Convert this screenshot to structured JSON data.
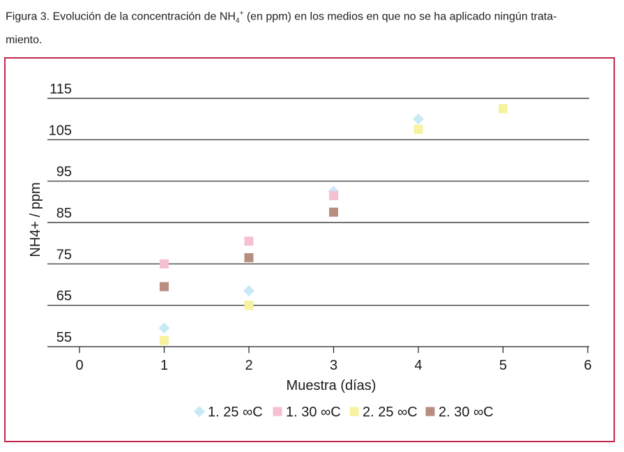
{
  "caption": {
    "prefix": "Figura 3. Evolución de la concentración de NH",
    "sub": "4",
    "sup": "+",
    "suffix": " (en ppm) en los medios en que no se ha aplicado ningún trata-",
    "line2": "miento."
  },
  "chart_data": {
    "type": "scatter",
    "title": "",
    "xlabel": "Muestra (días)",
    "ylabel": "NH4+ / ppm",
    "xlim": [
      0,
      6
    ],
    "ylim": [
      55,
      115
    ],
    "x_ticks": [
      "0",
      "1",
      "2",
      "3",
      "4",
      "5",
      "6"
    ],
    "y_ticks": [
      "55",
      "65",
      "75",
      "85",
      "95",
      "105",
      "115"
    ],
    "grid": "horizontal",
    "legend_position": "bottom",
    "series": [
      {
        "name": "1. 25 ∞C",
        "marker": "diamond",
        "color": "#c9e9f6",
        "points": [
          [
            1,
            59.5
          ],
          [
            2,
            68.5
          ],
          [
            3,
            92.5
          ],
          [
            4,
            110
          ]
        ]
      },
      {
        "name": "1. 30 ∞C",
        "marker": "square",
        "color": "#f6bfd2",
        "points": [
          [
            1,
            75
          ],
          [
            2,
            80.5
          ],
          [
            3,
            91.5
          ]
        ]
      },
      {
        "name": "2. 25 ∞C",
        "marker": "square",
        "color": "#f6f2a0",
        "points": [
          [
            1,
            56.5
          ],
          [
            2,
            65
          ],
          [
            4,
            107.5
          ],
          [
            5,
            112.5
          ]
        ]
      },
      {
        "name": "2. 30 ∞C",
        "marker": "square",
        "color": "#b88e80",
        "points": [
          [
            1,
            69.5
          ],
          [
            2,
            76.5
          ],
          [
            3,
            87.5
          ]
        ]
      }
    ]
  }
}
